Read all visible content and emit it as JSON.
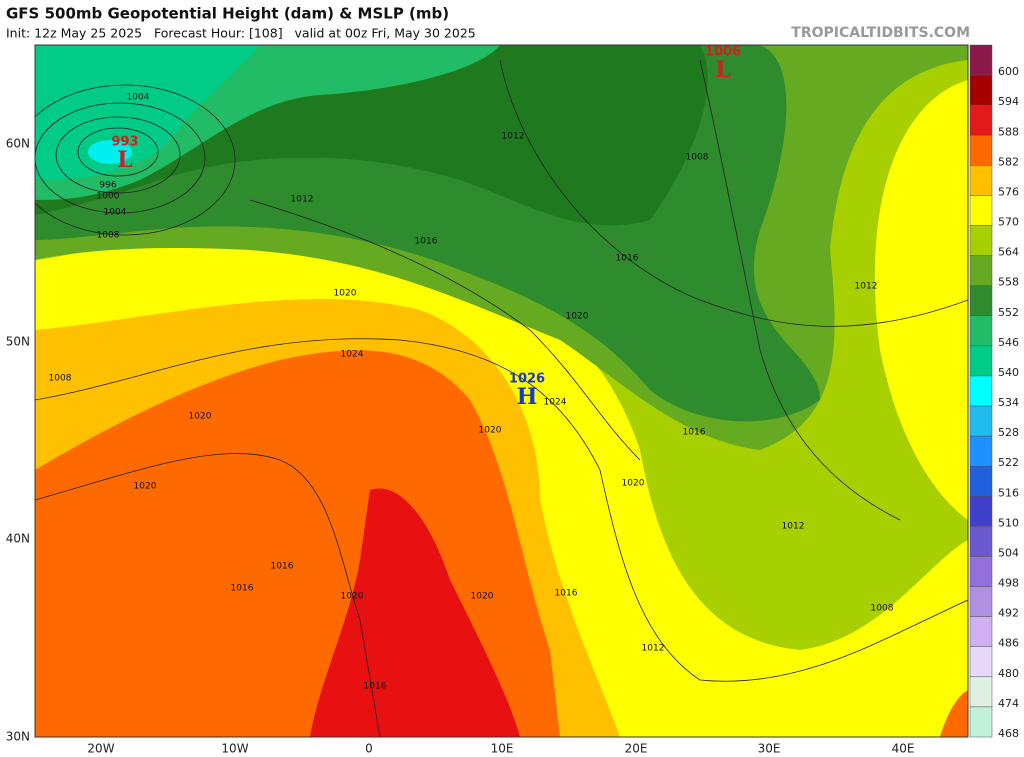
{
  "header": {
    "title": "GFS 500mb Geopotential Height (dam) & MSLP (mb)",
    "subtitle": "Init: 12z May 25 2025   Forecast Hour: [108]   valid at 00z Fri, May 30 2025",
    "watermark": "TROPICALTIDBITS.COM"
  },
  "colorbar": {
    "labels": [
      "600",
      "594",
      "588",
      "582",
      "576",
      "570",
      "564",
      "558",
      "552",
      "546",
      "540",
      "534",
      "528",
      "522",
      "516",
      "510",
      "504",
      "498",
      "492",
      "486",
      "480",
      "474",
      "468"
    ]
  },
  "latitude_labels": [
    "60N",
    "50N",
    "40N",
    "30N"
  ],
  "longitude_labels": [
    "20W",
    "10W",
    "0",
    "10E",
    "20E",
    "30E",
    "40E"
  ],
  "pressure_centers": [
    {
      "value": "993",
      "letter": "L"
    },
    {
      "value": "1006",
      "letter": "L"
    },
    {
      "value": "1026",
      "letter": "H"
    }
  ],
  "isobar_labels": [
    "1004",
    "996",
    "1000",
    "1004",
    "1008",
    "1008",
    "1012",
    "1016",
    "1020",
    "1024",
    "1020",
    "1020",
    "1016",
    "1016",
    "1020",
    "1020",
    "1016",
    "1016",
    "1020",
    "1024",
    "1020",
    "1020",
    "1016",
    "1012",
    "1008",
    "1012",
    "1016",
    "1012",
    "1008",
    "1012"
  ]
}
